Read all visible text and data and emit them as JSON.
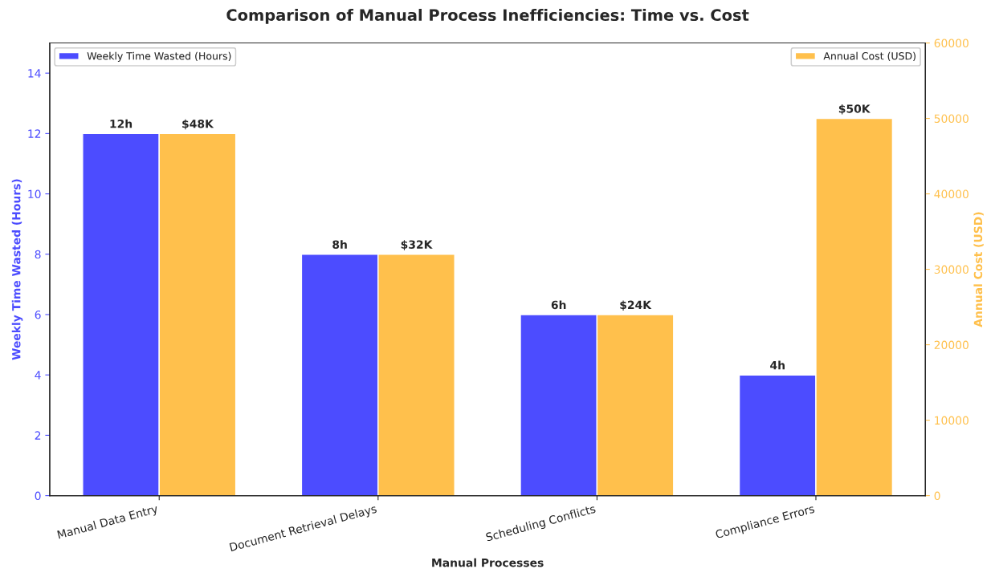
{
  "chart_data": {
    "type": "bar",
    "title": "Comparison of Manual Process Inefficiencies: Time vs. Cost",
    "xlabel": "Manual Processes",
    "ylabel": "Weekly Time Wasted (Hours)",
    "y2label": "Annual Cost (USD)",
    "categories": [
      "Manual Data Entry",
      "Document Retrieval Delays",
      "Scheduling Conflicts",
      "Compliance Errors"
    ],
    "series": [
      {
        "name": "Weekly Time Wasted (Hours)",
        "color": "#4c4cff",
        "values": [
          12,
          8,
          6,
          4
        ],
        "value_labels": [
          "12h",
          "8h",
          "6h",
          "4h"
        ]
      },
      {
        "name": "Annual Cost (USD)",
        "color": "#ffc04c",
        "values": [
          48000,
          32000,
          24000,
          50000
        ],
        "value_labels": [
          "$48K",
          "$32K",
          "$24K",
          "$50K"
        ],
        "axis": "y2"
      }
    ],
    "ylim": [
      0,
      15
    ],
    "yticks": [
      0,
      2,
      4,
      6,
      8,
      10,
      12,
      14
    ],
    "y2lim": [
      0,
      60000
    ],
    "y2ticks": [
      0,
      10000,
      20000,
      30000,
      40000,
      50000,
      60000
    ],
    "grid": false,
    "legend": "top"
  }
}
